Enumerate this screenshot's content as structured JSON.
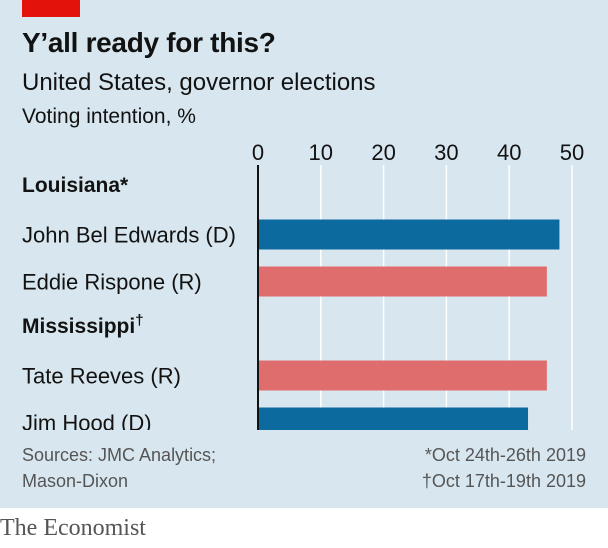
{
  "header": {
    "title": "Y’all ready for this?",
    "subtitle": "United States, governor elections",
    "unit": "Voting intention, %"
  },
  "colors": {
    "democrat": "#0d6a9e",
    "republican": "#e06d6e",
    "accent": "#e3120b",
    "background": "#d8e7ef",
    "gridline": "#ffffff"
  },
  "chart_data": {
    "type": "bar",
    "orientation": "horizontal",
    "xlim": [
      0,
      50
    ],
    "ticks": [
      "0",
      "10",
      "20",
      "30",
      "40",
      "50"
    ],
    "grid": true,
    "groups": [
      {
        "name": "Louisiana",
        "marker": "*",
        "bars": [
          {
            "label": "John Bel Edwards (D)",
            "party": "D",
            "value": 48
          },
          {
            "label": "Eddie Rispone (R)",
            "party": "R",
            "value": 46
          }
        ]
      },
      {
        "name": "Mississippi",
        "marker": "†",
        "bars": [
          {
            "label": "Tate Reeves (R)",
            "party": "R",
            "value": 46
          },
          {
            "label": "Jim Hood (D)",
            "party": "D",
            "value": 43
          }
        ]
      }
    ]
  },
  "footer": {
    "sources_line1": "Sources: JMC Analytics;",
    "sources_line2": "Mason-Dixon",
    "note1": "*Oct 24th-26th 2019",
    "note2": "†Oct 17th-19th 2019",
    "brand": "The Economist"
  }
}
